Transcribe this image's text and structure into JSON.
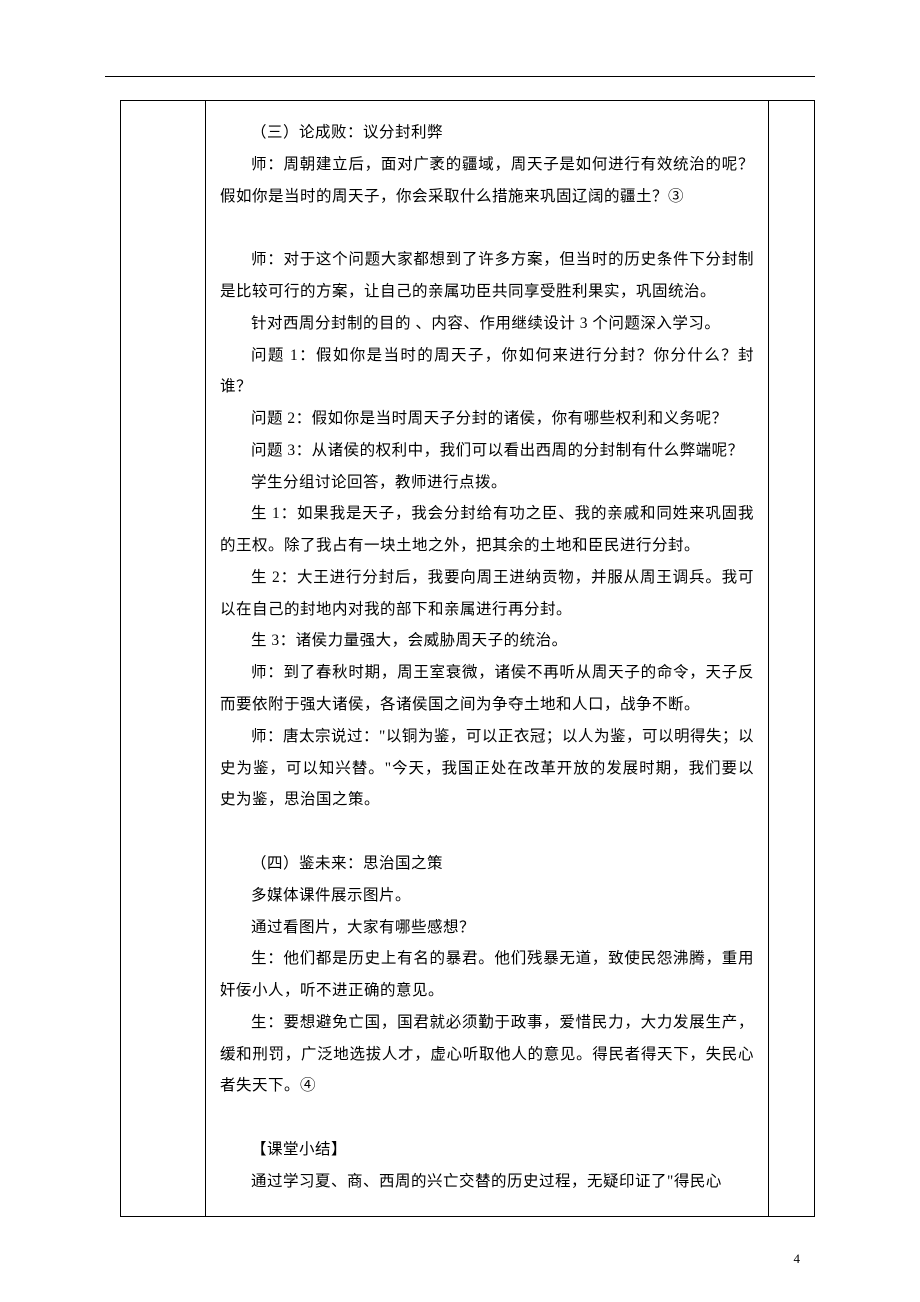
{
  "page": {
    "number": "4"
  },
  "content": {
    "section3_title": "（三）论成败：议分封利弊",
    "s3_p1": "师：周朝建立后，面对广袤的疆域，周天子是如何进行有效统治的呢？假如你是当时的周天子，你会采取什么措施来巩固辽阔的疆土？③",
    "s3_p2": "师：对于这个问题大家都想到了许多方案，但当时的历史条件下分封制是比较可行的方案，让自己的亲属功臣共同享受胜利果实，巩固统治。",
    "s3_p3": "针对西周分封制的目的 、内容、作用继续设计 3 个问题深入学习。",
    "s3_q1": "问题 1：假如你是当时的周天子，你如何来进行分封？你分什么？封谁？",
    "s3_q2": "问题 2：假如你是当时周天子分封的诸侯，你有哪些权利和义务呢？",
    "s3_q3": "问题 3：从诸侯的权利中，我们可以看出西周的分封制有什么弊端呢？",
    "s3_p4": "学生分组讨论回答，教师进行点拨。",
    "s3_a1": "生 1：如果我是天子，我会分封给有功之臣、我的亲戚和同姓来巩固我的王权。除了我占有一块土地之外，把其余的土地和臣民进行分封。",
    "s3_a2": "生 2：大王进行分封后，我要向周王进纳贡物，并服从周王调兵。我可以在自己的封地内对我的部下和亲属进行再分封。",
    "s3_a3": "生 3：诸侯力量强大，会威胁周天子的统治。",
    "s3_p5": "师：到了春秋时期，周王室衰微，诸侯不再听从周天子的命令，天子反而要依附于强大诸侯，各诸侯国之间为争夺土地和人口，战争不断。",
    "s3_p6": "师：唐太宗说过：\"以铜为鉴，可以正衣冠；以人为鉴，可以明得失；以史为鉴，可以知兴替。\"今天，我国正处在改革开放的发展时期，我们要以史为鉴，思治国之策。",
    "section4_title": "（四）鉴未来：思治国之策",
    "s4_p1": "多媒体课件展示图片。",
    "s4_p2": "通过看图片，大家有哪些感想？",
    "s4_p3": "生：他们都是历史上有名的暴君。他们残暴无道，致使民怨沸腾，重用奸佞小人，听不进正确的意见。",
    "s4_p4": "生：要想避免亡国，国君就必须勤于政事，爱惜民力，大力发展生产，缓和刑罚，广泛地选拔人才，虚心听取他人的意见。得民者得天下，失民心者失天下。④",
    "summary_title": "【课堂小结】",
    "summary_p1": "通过学习夏、商、西周的兴亡交替的历史过程，无疑印证了\"得民心"
  }
}
